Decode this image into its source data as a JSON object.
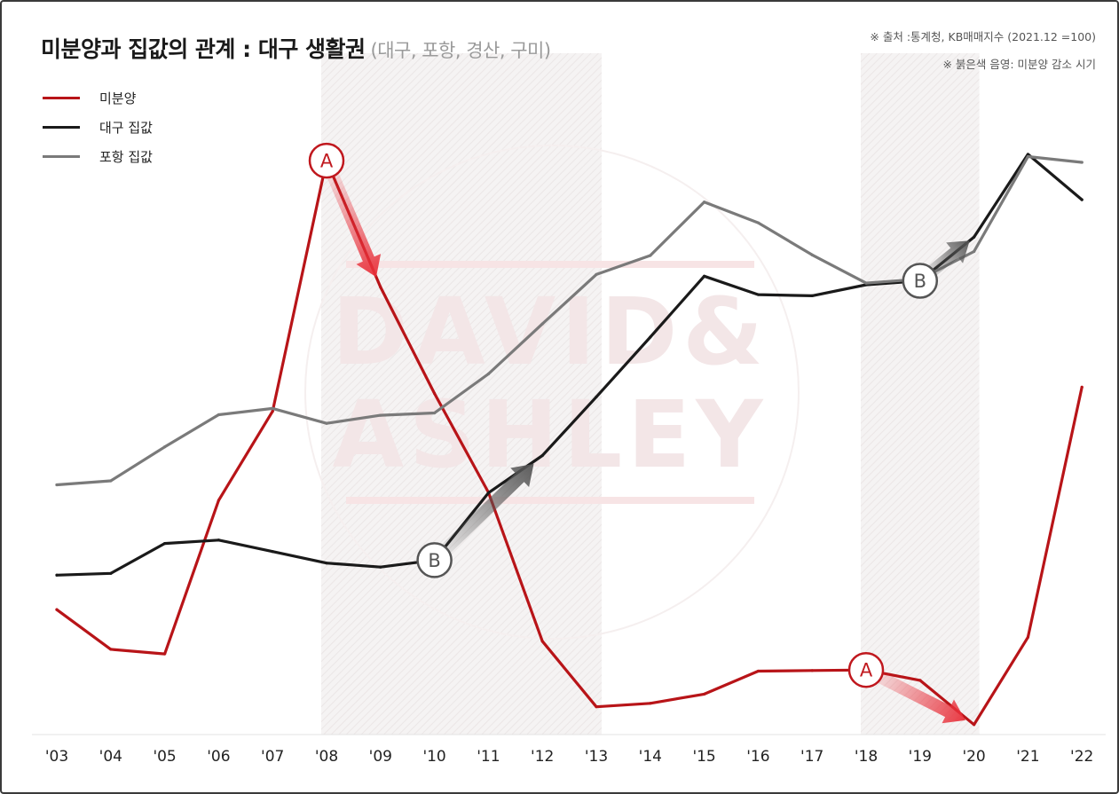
{
  "header": {
    "title": "미분양과 집값의 관계 : 대구 생활권",
    "subtitle": "(대구, 포항, 경산, 구미)"
  },
  "notes": {
    "source": "※ 출처 :통계청, KB매매지수 (2021.12 =100)",
    "shading": "※ 붉은색 음영: 미분양 감소 시기"
  },
  "colors": {
    "unsold": "#b81418",
    "daegu": "#1a1a1a",
    "pohang": "#7a7a7a",
    "shade": "#f4f2f2",
    "marker_a": "#c0181e",
    "marker_b": "#555555"
  },
  "watermark": {
    "line1": "DAVID&",
    "line2": "ASHLEY"
  },
  "chart_data": {
    "type": "line",
    "title": "미분양과 집값의 관계 : 대구 생활권",
    "x": [
      "'03",
      "'04",
      "'05",
      "'06",
      "'07",
      "'08",
      "'09",
      "'10",
      "'11",
      "'12",
      "'13",
      "'14",
      "'15",
      "'16",
      "'17",
      "'18",
      "'19",
      "'20",
      "'21",
      "'22"
    ],
    "ylim": [
      0,
      100
    ],
    "grid": false,
    "legend_position": "top-left",
    "series": [
      {
        "key": "unsold",
        "name": "미분양",
        "color": "#b81418",
        "values": [
          20.5,
          13.6,
          12.8,
          39.5,
          55.0,
          98.6,
          76.6,
          58.1,
          40.9,
          15.0,
          3.6,
          4.2,
          5.8,
          9.8,
          9.9,
          10.0,
          8.2,
          0.5,
          15.7,
          59.2
        ]
      },
      {
        "key": "daegu",
        "name": "대구 집값",
        "color": "#1a1a1a",
        "values": [
          26.5,
          26.8,
          32.0,
          32.6,
          30.6,
          28.6,
          27.9,
          29.1,
          40.8,
          47.3,
          57.5,
          67.9,
          78.5,
          75.3,
          75.1,
          77.0,
          77.7,
          85.3,
          99.7,
          91.8
        ]
      },
      {
        "key": "pohang",
        "name": "포항 집값",
        "color": "#7a7a7a",
        "values": [
          42.2,
          42.9,
          48.8,
          54.4,
          55.5,
          52.9,
          54.3,
          54.7,
          61.5,
          70.2,
          78.8,
          82.1,
          91.4,
          87.8,
          82.2,
          77.3,
          78.0,
          82.8,
          99.3,
          98.3
        ]
      }
    ],
    "shaded_periods": [
      {
        "from": "'08",
        "to": "'13"
      },
      {
        "from": "'18",
        "to": "'20"
      }
    ],
    "annotations": [
      {
        "label": "A",
        "series": "unsold",
        "at": "'08",
        "arrow_to": "'09"
      },
      {
        "label": "A",
        "series": "unsold",
        "at": "'18",
        "arrow_to": "'20"
      },
      {
        "label": "B",
        "series": "daegu",
        "at": "'10",
        "arrow_to": "'12"
      },
      {
        "label": "B",
        "series": "daegu",
        "at": "'19",
        "arrow_to": "'20"
      }
    ]
  }
}
